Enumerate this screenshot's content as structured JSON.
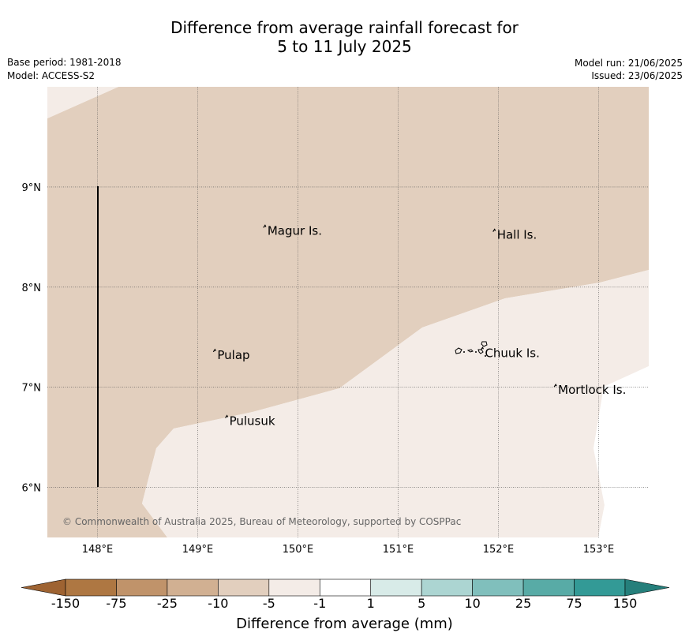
{
  "title": {
    "line1": "Difference from average rainfall forecast for",
    "line2": "5 to 11 July 2025"
  },
  "meta": {
    "base_period": "Base period: 1981-2018",
    "model": "Model: ACCESS-S2",
    "model_run": "Model run: 21/06/2025",
    "issued": "Issued: 23/06/2025"
  },
  "map": {
    "lon_range": [
      147.5,
      153.5
    ],
    "lat_range": [
      5.5,
      10.0
    ],
    "lon_ticks": [
      "148°E",
      "149°E",
      "150°E",
      "151°E",
      "152°E",
      "153°E"
    ],
    "lat_ticks": [
      "6°N",
      "7°N",
      "8°N",
      "9°N"
    ],
    "places": [
      {
        "name": "Magur Is.",
        "lon": 149.68,
        "lat": 8.57
      },
      {
        "name": "Hall Is.",
        "lon": 151.97,
        "lat": 8.53
      },
      {
        "name": "Pulap",
        "lon": 149.18,
        "lat": 7.33
      },
      {
        "name": "Chuuk Is.",
        "lon": 151.85,
        "lat": 7.35
      },
      {
        "name": "Mortlock Is.",
        "lon": 152.58,
        "lat": 6.98
      },
      {
        "name": "Pulusuk",
        "lon": 149.3,
        "lat": 6.67
      }
    ],
    "colors": {
      "dry_light": "#e2cfbe",
      "near_average": "#f4ece7",
      "average": "#ffffff"
    },
    "copyright": "© Commonwealth of Australia 2025, Bureau of Meteorology, supported by COSPPac"
  },
  "colorbar": {
    "title": "Difference from average (mm)",
    "ticks": [
      "-150",
      "-75",
      "-25",
      "-10",
      "-5",
      "-1",
      "1",
      "5",
      "10",
      "25",
      "75",
      "150"
    ],
    "colors": [
      "#ae7742",
      "#c0936a",
      "#d1b092",
      "#e2cfbe",
      "#f4ece7",
      "#ffffff",
      "#d8ebe8",
      "#acd5d2",
      "#80bfbc",
      "#58aba6",
      "#339a96"
    ],
    "low_extend_color": "#9e6332",
    "high_extend_color": "#257f7b"
  }
}
